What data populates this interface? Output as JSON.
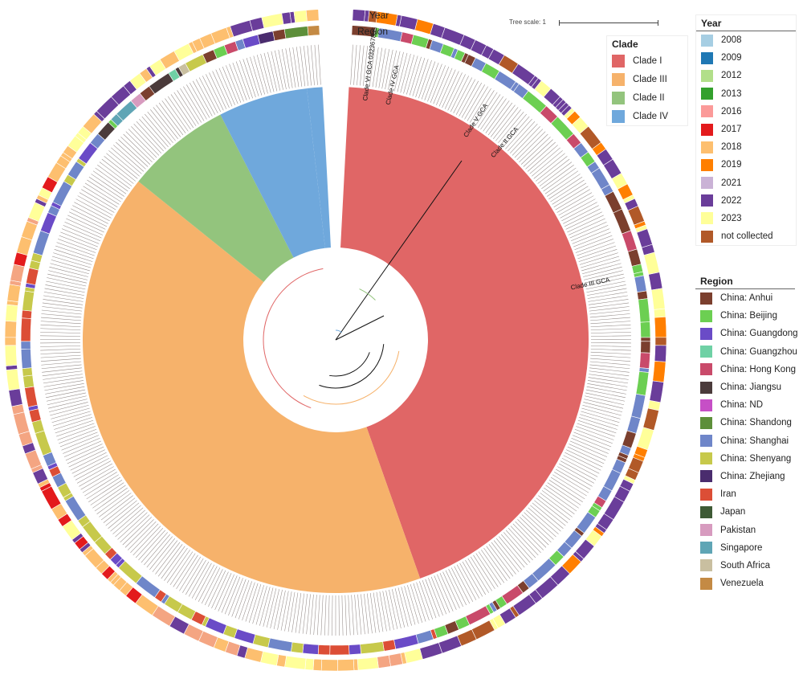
{
  "tree": {
    "ring_labels": {
      "year": "Year",
      "region": "Region"
    },
    "clade_sectors": [
      {
        "name": "Clade I",
        "color": "#e06666",
        "start": 0.0,
        "end": 222.0
      },
      {
        "name": "Clade III",
        "color": "#f6b26b",
        "start": 222.0,
        "end": 431.0
      },
      {
        "name": "Clade II",
        "color": "#93c47d",
        "start": 431.0,
        "end": 465.0
      },
      {
        "name": "Clade IV",
        "color": "#6fa8dc",
        "start": 465.0,
        "end": 494.0
      },
      {
        "name": "Clade VI",
        "color": "#6fa8dc",
        "start": 494.0,
        "end": 499.0
      }
    ],
    "highlight_labels": [
      {
        "text": "Clade VI GCA 032367835",
        "angle": 7.5
      },
      {
        "text": "Clade IV GCA",
        "angle": 13
      },
      {
        "text": "Clade V GCA",
        "angle": 33
      },
      {
        "text": "Clade II GCA",
        "angle": 41
      },
      {
        "text": "Clade III GCA",
        "angle": 78
      }
    ],
    "year_ring_colors": [
      "#74a9cf",
      "#225ea8",
      "#a1d99b",
      "#31a354",
      "#f4a582",
      "#e31a1c",
      "#fdbf6f",
      "#ff7f00",
      "#cab2d6",
      "#6a3d9a",
      "#ffff99",
      "#b15928"
    ],
    "region_ring_colors": [
      "#7b3f2e",
      "#6ccf52",
      "#6a4bc7",
      "#6fd1a5",
      "#c94a6a",
      "#4b3b3b",
      "#c64fc6",
      "#5d8f3a",
      "#6f86c9",
      "#c7c94b",
      "#4a2c6e",
      "#dc4e36",
      "#3e5a35",
      "#d79bbf",
      "#5fa5b5",
      "#c9bfa0",
      "#c48a44"
    ]
  },
  "clade_legend": {
    "title": "Clade",
    "items": [
      {
        "label": "Clade I",
        "color": "#e06666"
      },
      {
        "label": "Clade III",
        "color": "#f6b26b"
      },
      {
        "label": "Clade II",
        "color": "#93c47d"
      },
      {
        "label": "Clade IV",
        "color": "#6fa8dc"
      }
    ]
  },
  "year_legend": {
    "title": "Year",
    "items": [
      {
        "label": "2008",
        "color": "#a6cee3"
      },
      {
        "label": "2009",
        "color": "#1f78b4"
      },
      {
        "label": "2012",
        "color": "#b2df8a"
      },
      {
        "label": "2013",
        "color": "#33a02c"
      },
      {
        "label": "2016",
        "color": "#fb9a99"
      },
      {
        "label": "2017",
        "color": "#e31a1c"
      },
      {
        "label": "2018",
        "color": "#fdbf6f"
      },
      {
        "label": "2019",
        "color": "#ff7f00"
      },
      {
        "label": "2021",
        "color": "#cab2d6"
      },
      {
        "label": "2022",
        "color": "#6a3d9a"
      },
      {
        "label": "2023",
        "color": "#ffff99"
      },
      {
        "label": "not collected",
        "color": "#b15928"
      }
    ]
  },
  "region_legend": {
    "title": "Region",
    "items": [
      {
        "label": "China: Anhui",
        "color": "#7b3f2e"
      },
      {
        "label": "China: Beijing",
        "color": "#6ccf52"
      },
      {
        "label": "China: Guangdong",
        "color": "#6a4bc7"
      },
      {
        "label": "China: Guangzhou",
        "color": "#6fd1a5"
      },
      {
        "label": "China: Hong Kong",
        "color": "#c94a6a"
      },
      {
        "label": "China: Jiangsu",
        "color": "#4b3b3b"
      },
      {
        "label": "China: ND",
        "color": "#c64fc6"
      },
      {
        "label": "China: Shandong",
        "color": "#5d8f3a"
      },
      {
        "label": "China: Shanghai",
        "color": "#6f86c9"
      },
      {
        "label": "China: Shenyang",
        "color": "#c7c94b"
      },
      {
        "label": "China: Zhejiang",
        "color": "#4a2c6e"
      },
      {
        "label": "Iran",
        "color": "#dc4e36"
      },
      {
        "label": "Japan",
        "color": "#3e5a35"
      },
      {
        "label": "Pakistan",
        "color": "#d79bbf"
      },
      {
        "label": "Singapore",
        "color": "#5fa5b5"
      },
      {
        "label": "South Africa",
        "color": "#c9bfa0"
      },
      {
        "label": "Venezuela",
        "color": "#c48a44"
      }
    ]
  },
  "tree_scale": {
    "label": "Tree scale: 1"
  }
}
